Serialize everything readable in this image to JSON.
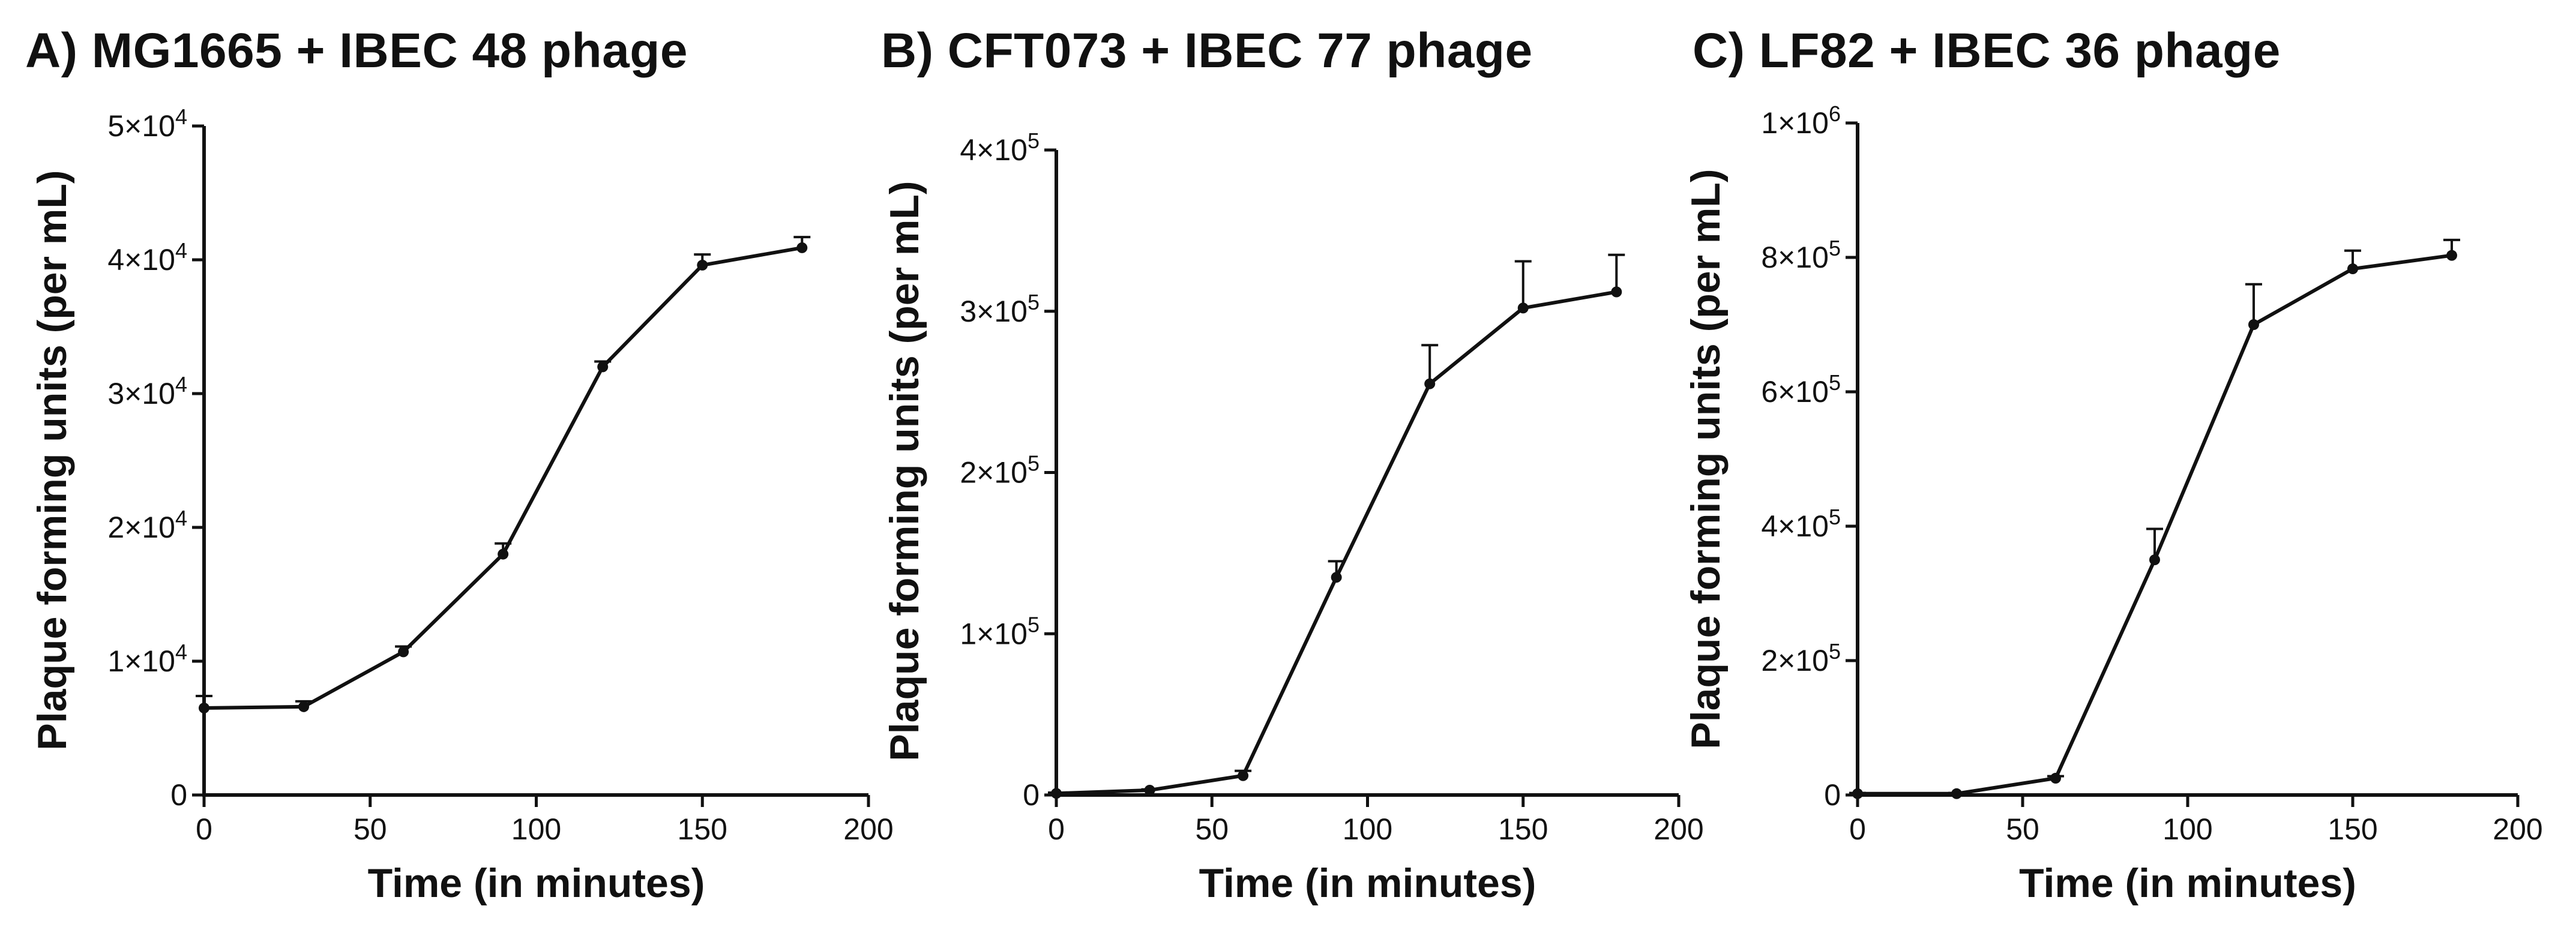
{
  "chart_data": [
    {
      "type": "line",
      "title": "A) MG1665 + IBEC 48 phage",
      "xlabel": "Time (in minutes)",
      "ylabel": "Plaque forming units (per mL)",
      "xlim": [
        0,
        200
      ],
      "ylim": [
        0,
        50000
      ],
      "xticks": [
        0,
        50,
        100,
        150,
        200
      ],
      "xtick_labels": [
        "0",
        "50",
        "100",
        "150",
        "200"
      ],
      "yticks": [
        0,
        10000,
        20000,
        30000,
        40000,
        50000
      ],
      "ytick_labels": [
        {
          "mantissa": "0",
          "exp": ""
        },
        {
          "mantissa": "1×10",
          "exp": "4"
        },
        {
          "mantissa": "2×10",
          "exp": "4"
        },
        {
          "mantissa": "3×10",
          "exp": "4"
        },
        {
          "mantissa": "4×10",
          "exp": "4"
        },
        {
          "mantissa": "5×10",
          "exp": "4"
        }
      ],
      "x": [
        0,
        30,
        60,
        90,
        120,
        150,
        180
      ],
      "values": [
        6500,
        6600,
        10700,
        18000,
        32000,
        39600,
        40900
      ],
      "error_upper": [
        7400,
        7000,
        11100,
        18800,
        32400,
        40400,
        41700
      ],
      "grid": false
    },
    {
      "type": "line",
      "title": "B) CFT073 + IBEC 77 phage",
      "xlabel": "Time (in minutes)",
      "ylabel": "Plaque forming units (per mL)",
      "xlim": [
        0,
        200
      ],
      "ylim": [
        0,
        400000
      ],
      "xticks": [
        0,
        50,
        100,
        150,
        200
      ],
      "xtick_labels": [
        "0",
        "50",
        "100",
        "150",
        "200"
      ],
      "yticks": [
        0,
        100000,
        200000,
        300000,
        400000
      ],
      "ytick_labels": [
        {
          "mantissa": "0",
          "exp": ""
        },
        {
          "mantissa": "1×10",
          "exp": "5"
        },
        {
          "mantissa": "2×10",
          "exp": "5"
        },
        {
          "mantissa": "3×10",
          "exp": "5"
        },
        {
          "mantissa": "4×10",
          "exp": "5"
        }
      ],
      "x": [
        0,
        30,
        60,
        90,
        120,
        150,
        180
      ],
      "values": [
        1000,
        3000,
        12000,
        135000,
        255000,
        302000,
        312000
      ],
      "error_upper": [
        1500,
        3500,
        15000,
        145000,
        279000,
        331000,
        335000
      ],
      "grid": false
    },
    {
      "type": "line",
      "title": "C) LF82 + IBEC 36 phage",
      "xlabel": "Time (in minutes)",
      "ylabel": "Plaque forming units (per mL)",
      "xlim": [
        0,
        200
      ],
      "ylim": [
        0,
        1000000
      ],
      "xticks": [
        0,
        50,
        100,
        150,
        200
      ],
      "xtick_labels": [
        "0",
        "50",
        "100",
        "150",
        "200"
      ],
      "yticks": [
        0,
        200000,
        400000,
        600000,
        800000,
        1000000
      ],
      "ytick_labels": [
        {
          "mantissa": "0",
          "exp": ""
        },
        {
          "mantissa": "2×10",
          "exp": "5"
        },
        {
          "mantissa": "4×10",
          "exp": "5"
        },
        {
          "mantissa": "6×10",
          "exp": "5"
        },
        {
          "mantissa": "8×10",
          "exp": "5"
        },
        {
          "mantissa": "1×10",
          "exp": "6"
        }
      ],
      "x": [
        0,
        30,
        60,
        90,
        120,
        150,
        180
      ],
      "values": [
        2000,
        2000,
        25000,
        350000,
        700000,
        783000,
        803000
      ],
      "error_upper": [
        3000,
        3000,
        28000,
        396000,
        760000,
        810000,
        826000
      ],
      "grid": false
    }
  ]
}
